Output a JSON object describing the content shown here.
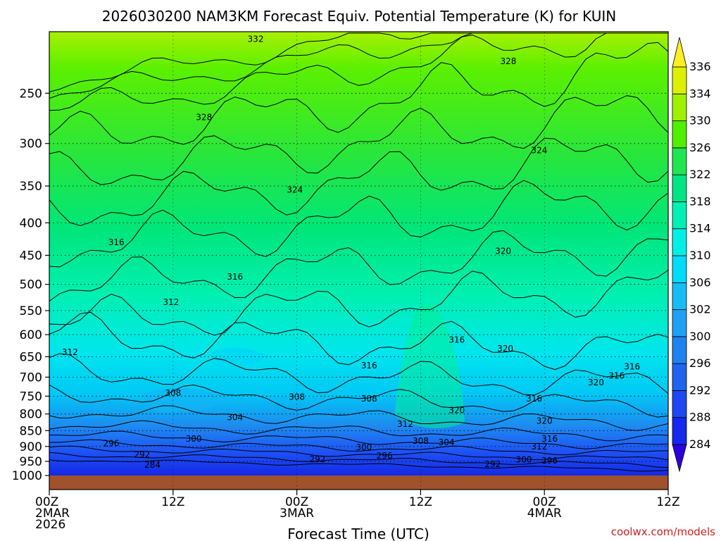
{
  "chart_data": {
    "type": "heatmap",
    "title": "2026030200 NAM3KM Forecast Equiv. Potential Temperature (K) for KUIN",
    "xlabel": "Forecast Time (UTC)",
    "ylabel": "",
    "credit": "coolwx.com/models",
    "y_axis": {
      "scale": "log-pressure",
      "range": [
        1000,
        200
      ],
      "ticks": [
        "250",
        "300",
        "350",
        "400",
        "450",
        "500",
        "550",
        "600",
        "650",
        "700",
        "750",
        "800",
        "850",
        "900",
        "950",
        "1000"
      ]
    },
    "x_axis": {
      "range_hours": [
        0,
        60
      ],
      "ticks": [
        {
          "hour": 0,
          "line1": "00Z",
          "line2": "2MAR",
          "line3": "2026"
        },
        {
          "hour": 12,
          "line1": "12Z",
          "line2": "",
          "line3": ""
        },
        {
          "hour": 24,
          "line1": "00Z",
          "line2": "3MAR",
          "line3": ""
        },
        {
          "hour": 36,
          "line1": "12Z",
          "line2": "",
          "line3": ""
        },
        {
          "hour": 48,
          "line1": "00Z",
          "line2": "4MAR",
          "line3": ""
        },
        {
          "hour": 60,
          "line1": "12Z",
          "line2": "",
          "line3": ""
        }
      ]
    },
    "colorbar": {
      "levels": [
        "284",
        "288",
        "292",
        "296",
        "300",
        "302",
        "306",
        "310",
        "314",
        "318",
        "322",
        "326",
        "330",
        "334",
        "336"
      ],
      "bands": [
        {
          "low": 280,
          "high": 284,
          "color": "#0a0adc"
        },
        {
          "low": 284,
          "high": 288,
          "color": "#1428f0"
        },
        {
          "low": 288,
          "high": 292,
          "color": "#1e46f5"
        },
        {
          "low": 292,
          "high": 296,
          "color": "#1e64f0"
        },
        {
          "low": 296,
          "high": 300,
          "color": "#1e82f0"
        },
        {
          "low": 300,
          "high": 302,
          "color": "#1ea0f5"
        },
        {
          "low": 302,
          "high": 306,
          "color": "#14bef5"
        },
        {
          "low": 306,
          "high": 310,
          "color": "#00dcfa"
        },
        {
          "low": 310,
          "high": 314,
          "color": "#00f0e6"
        },
        {
          "low": 314,
          "high": 318,
          "color": "#00f0b4"
        },
        {
          "low": 318,
          "high": 322,
          "color": "#00e682"
        },
        {
          "low": 322,
          "high": 326,
          "color": "#1ee650"
        },
        {
          "low": 326,
          "high": 330,
          "color": "#50f000"
        },
        {
          "low": 330,
          "high": 334,
          "color": "#a0f000"
        },
        {
          "low": 334,
          "high": 336,
          "color": "#dcf000"
        },
        {
          "low": 336,
          "high": 340,
          "color": "#f5f014"
        }
      ],
      "arrow_low_color": "#2a00dc",
      "arrow_high_color": "#ffee22"
    },
    "contour_labels": [
      {
        "text": "332",
        "hour": 20.0,
        "p": 205
      },
      {
        "text": "328",
        "hour": 44.5,
        "p": 222
      },
      {
        "text": "328",
        "hour": 15.0,
        "p": 272
      },
      {
        "text": "324",
        "hour": 47.5,
        "p": 307
      },
      {
        "text": "324",
        "hour": 23.8,
        "p": 354
      },
      {
        "text": "316",
        "hour": 6.5,
        "p": 428
      },
      {
        "text": "320",
        "hour": 44.0,
        "p": 442
      },
      {
        "text": "316",
        "hour": 18.0,
        "p": 485
      },
      {
        "text": "312",
        "hour": 11.8,
        "p": 532
      },
      {
        "text": "316",
        "hour": 39.5,
        "p": 610
      },
      {
        "text": "320",
        "hour": 44.2,
        "p": 630
      },
      {
        "text": "312",
        "hour": 2.0,
        "p": 638
      },
      {
        "text": "316",
        "hour": 31.0,
        "p": 670
      },
      {
        "text": "316",
        "hour": 56.5,
        "p": 672
      },
      {
        "text": "316",
        "hour": 55.0,
        "p": 695
      },
      {
        "text": "320",
        "hour": 53.0,
        "p": 712
      },
      {
        "text": "308",
        "hour": 12.0,
        "p": 740
      },
      {
        "text": "308",
        "hour": 24.0,
        "p": 750
      },
      {
        "text": "308",
        "hour": 31.0,
        "p": 755
      },
      {
        "text": "316",
        "hour": 47.0,
        "p": 755
      },
      {
        "text": "320",
        "hour": 39.5,
        "p": 788
      },
      {
        "text": "304",
        "hour": 18.0,
        "p": 808
      },
      {
        "text": "320",
        "hour": 48.0,
        "p": 818
      },
      {
        "text": "312",
        "hour": 34.5,
        "p": 828
      },
      {
        "text": "300",
        "hour": 14.0,
        "p": 873
      },
      {
        "text": "316",
        "hour": 48.5,
        "p": 873
      },
      {
        "text": "308",
        "hour": 36.0,
        "p": 880
      },
      {
        "text": "304",
        "hour": 38.5,
        "p": 885
      },
      {
        "text": "296",
        "hour": 6.0,
        "p": 888
      },
      {
        "text": "312",
        "hour": 47.5,
        "p": 898
      },
      {
        "text": "300",
        "hour": 30.5,
        "p": 900
      },
      {
        "text": "292",
        "hour": 9.0,
        "p": 925
      },
      {
        "text": "296",
        "hour": 32.5,
        "p": 928
      },
      {
        "text": "292",
        "hour": 26.0,
        "p": 940
      },
      {
        "text": "300",
        "hour": 46.0,
        "p": 942
      },
      {
        "text": "296",
        "hour": 48.5,
        "p": 945
      },
      {
        "text": "284",
        "hour": 10.0,
        "p": 960
      },
      {
        "text": "292",
        "hour": 43.0,
        "p": 958
      }
    ]
  }
}
